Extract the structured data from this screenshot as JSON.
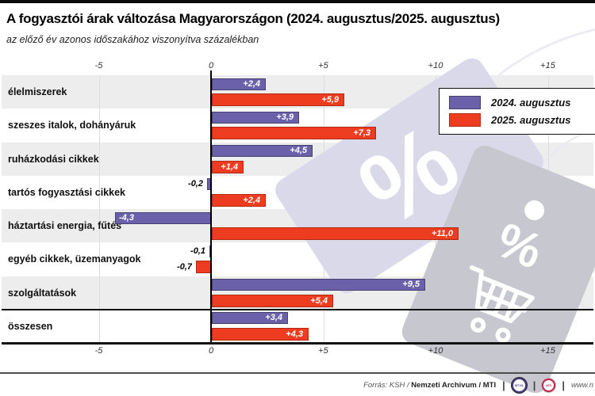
{
  "header": {
    "title": "A fogyasztói árak változása Magyarországon (2024. augusztus/2025. augusztus)",
    "subtitle": "az előző év azonos időszakához viszonyítva százalékban"
  },
  "legend": {
    "items": [
      {
        "label": "2024. augusztus"
      },
      {
        "label": "2025. augusztus"
      }
    ]
  },
  "chart_data": {
    "type": "bar",
    "orientation": "horizontal",
    "title": "A fogyasztói árak változása Magyarországon (2024. augusztus/2025. augusztus)",
    "subtitle": "az előző év azonos időszakához viszonyítva százalékban",
    "unit": "percent (change vs same period of previous year)",
    "categories": [
      "élelmiszerek",
      "szeszes italok, dohányáruk",
      "ruházkodási cikkek",
      "tartós fogyasztási cikkek",
      "háztartási energia, fűtés",
      "egyéb cikkek, üzemanyagok",
      "szolgáltatások",
      "összesen"
    ],
    "series": [
      {
        "name": "2024. augusztus",
        "color": "#6b61ab",
        "border": "#44406f",
        "values": [
          2.4,
          3.9,
          4.5,
          -0.2,
          -4.3,
          -0.1,
          9.5,
          3.4
        ],
        "labels": [
          "+2,4",
          "+3,9",
          "+4,5",
          "-0,2",
          "-4,3",
          "-0,1",
          "+9,5",
          "+3,4"
        ]
      },
      {
        "name": "2025. augusztus",
        "color": "#ee3c20",
        "border": "#b02a12",
        "values": [
          5.9,
          7.3,
          1.4,
          2.4,
          11.0,
          -0.7,
          5.4,
          4.3
        ],
        "labels": [
          "+5,9",
          "+7,3",
          "+1,4",
          "+2,4",
          "+11,0",
          "-0,7",
          "+5,4",
          "+4,3"
        ]
      }
    ],
    "x_ticks": [
      {
        "label": "-5",
        "value": -5
      },
      {
        "label": "0",
        "value": 0
      },
      {
        "label": "+5",
        "value": 5
      },
      {
        "label": "+10",
        "value": 10
      },
      {
        "label": "+15",
        "value": 15
      }
    ],
    "xlim": [
      -9.3,
      17
    ],
    "grid": "light vertical gridlines at ticks; black zero line; tick labels repeated on top and bottom",
    "legend_position": "top-right",
    "row_shading": "alternating gray bands starting with first row",
    "total_row_separator_before": "összesen"
  },
  "watermark": {
    "percent": "%"
  },
  "footer": {
    "source_prefix": "Forrás: KSH / ",
    "source_bold": "Nemzeti Archivum",
    "source_suffix": " / MTI",
    "separator": "|",
    "logo_mtva": "MTVA",
    "logo_mti": "MTI",
    "url": "www.n"
  }
}
